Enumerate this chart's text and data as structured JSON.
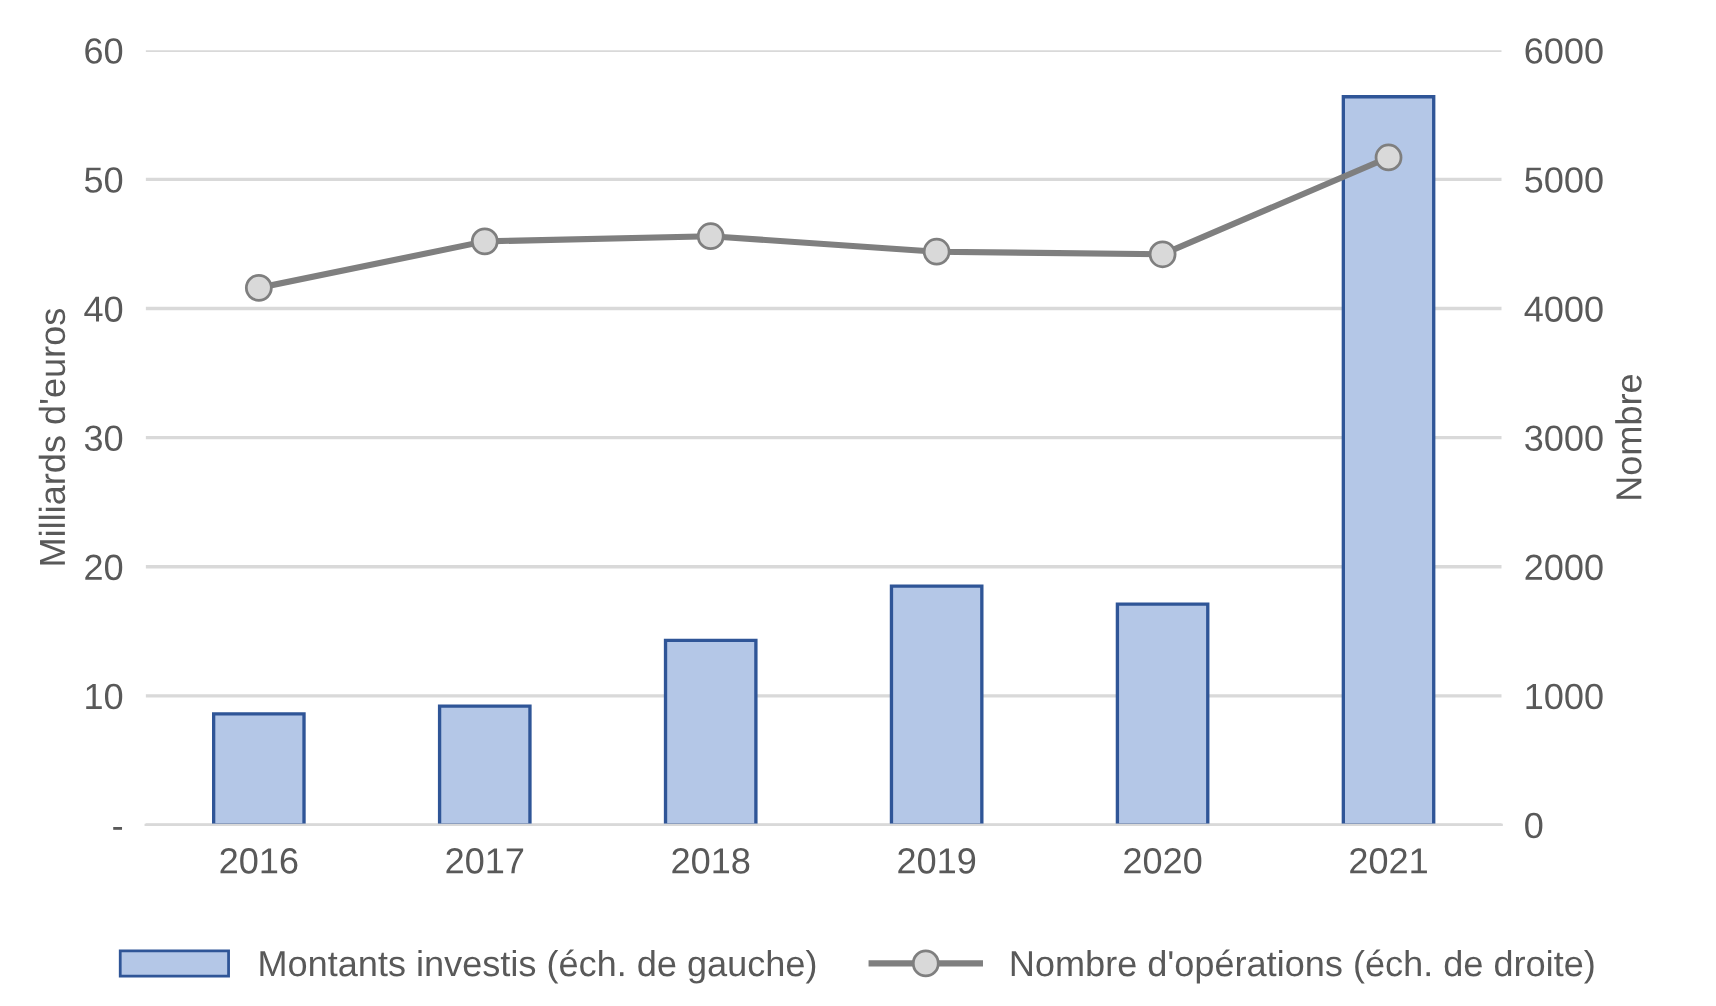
{
  "chart_data": {
    "type": "bar",
    "categories": [
      "2016",
      "2017",
      "2018",
      "2019",
      "2020",
      "2021"
    ],
    "series": [
      {
        "name": "Montants investis (éch. de gauche)",
        "color": "#b4c7e7",
        "values": [
          8.6,
          9.2,
          14.3,
          18.5,
          17.1,
          56.4
        ]
      },
      {
        "name": "Nombre d'opérations (éch. de droite)",
        "type": "line",
        "axis": "y2",
        "color": "#7f7f7f",
        "marker": "circle",
        "values": [
          4160,
          4520,
          4560,
          4440,
          4420,
          5170
        ]
      }
    ],
    "ylabel": "Milliards d'euros",
    "y2label": "Nombre",
    "ylim": [
      0,
      60
    ],
    "yticks": [
      {
        "value": 0,
        "label": "-"
      },
      10,
      20,
      30,
      40,
      50,
      60
    ],
    "y2lim": [
      0,
      6000
    ],
    "y2ticks": [
      0,
      1000,
      2000,
      3000,
      4000,
      5000,
      6000
    ],
    "grid": "y",
    "legend": "bottom"
  }
}
